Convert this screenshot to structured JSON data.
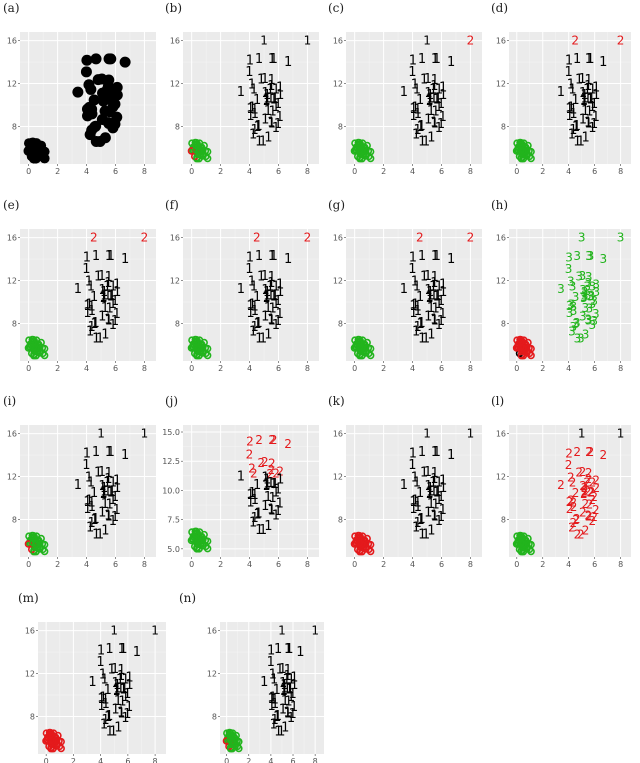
{
  "colors": {
    "panel_bg": "#ebebeb",
    "grid_major": "#ffffff",
    "cluster_1": "#000000",
    "cluster_2": "#e41a1c",
    "cluster_3": "#22b41d"
  },
  "chart_data": [
    {
      "label": "(a)",
      "type": "scatter",
      "marker": "dot",
      "small": "black",
      "large": "black",
      "xticks": [
        "0",
        "2",
        "4",
        "6",
        "8"
      ],
      "yticks": [
        "8",
        "12",
        "16"
      ],
      "xlim": [
        -0.6,
        8.8
      ],
      "ylim": [
        4.5,
        16.8
      ],
      "grid": true
    },
    {
      "label": "(b)",
      "type": "scatter",
      "marker": "label",
      "small": "mixed",
      "large": "1",
      "extra": [
        {
          "text": "1",
          "color": "black",
          "x": 5.0,
          "y": 16.0
        },
        {
          "text": "1",
          "color": "black",
          "x": 8.0,
          "y": 16.0
        }
      ],
      "xticks": [
        "0",
        "2",
        "4",
        "6",
        "8"
      ],
      "yticks": [
        "8",
        "12",
        "16"
      ],
      "xlim": [
        -0.6,
        8.8
      ],
      "ylim": [
        4.5,
        16.8
      ],
      "grid": true
    },
    {
      "label": "(c)",
      "type": "scatter",
      "marker": "label",
      "small": "green",
      "large": "1",
      "extra": [
        {
          "text": "1",
          "color": "black",
          "x": 5.0,
          "y": 16.0
        },
        {
          "text": "2",
          "color": "red",
          "x": 8.0,
          "y": 16.0
        }
      ],
      "xticks": [
        "0",
        "2",
        "4",
        "6",
        "8"
      ],
      "yticks": [
        "8",
        "12",
        "16"
      ],
      "xlim": [
        -0.6,
        8.8
      ],
      "ylim": [
        4.5,
        16.8
      ],
      "grid": true
    },
    {
      "label": "(d)",
      "type": "scatter",
      "marker": "label",
      "small": "green",
      "large": "1",
      "extra": [
        {
          "text": "2",
          "color": "red",
          "x": 4.5,
          "y": 16.0
        },
        {
          "text": "2",
          "color": "red",
          "x": 8.0,
          "y": 16.0
        }
      ],
      "xticks": [
        "0",
        "2",
        "4",
        "6",
        "8"
      ],
      "yticks": [
        "8",
        "12",
        "16"
      ],
      "xlim": [
        -0.6,
        8.8
      ],
      "ylim": [
        4.5,
        16.8
      ],
      "grid": true
    },
    {
      "label": "(e)",
      "type": "scatter",
      "marker": "label",
      "small": "green",
      "large": "1",
      "extra": [
        {
          "text": "2",
          "color": "red",
          "x": 4.5,
          "y": 16.0
        },
        {
          "text": "2",
          "color": "red",
          "x": 8.0,
          "y": 16.0
        }
      ],
      "xticks": [
        "0",
        "2",
        "4",
        "6",
        "8"
      ],
      "yticks": [
        "8",
        "12",
        "16"
      ],
      "xlim": [
        -0.6,
        8.8
      ],
      "ylim": [
        4.5,
        16.8
      ],
      "grid": true
    },
    {
      "label": "(f)",
      "type": "scatter",
      "marker": "label",
      "small": "green",
      "large": "1",
      "extra": [
        {
          "text": "2",
          "color": "red",
          "x": 4.5,
          "y": 16.0
        },
        {
          "text": "2",
          "color": "red",
          "x": 8.0,
          "y": 16.0
        }
      ],
      "xticks": [
        "0",
        "2",
        "4",
        "6",
        "8"
      ],
      "yticks": [
        "8",
        "12",
        "16"
      ],
      "xlim": [
        -0.6,
        8.8
      ],
      "ylim": [
        4.5,
        16.8
      ],
      "grid": true
    },
    {
      "label": "(g)",
      "type": "scatter",
      "marker": "label",
      "small": "green",
      "large": "1",
      "extra": [
        {
          "text": "2",
          "color": "red",
          "x": 4.5,
          "y": 16.0
        },
        {
          "text": "2",
          "color": "red",
          "x": 8.0,
          "y": 16.0
        }
      ],
      "xticks": [
        "0",
        "2",
        "4",
        "6",
        "8"
      ],
      "yticks": [
        "8",
        "12",
        "16"
      ],
      "xlim": [
        -0.6,
        8.8
      ],
      "ylim": [
        4.5,
        16.8
      ],
      "grid": true
    },
    {
      "label": "(h)",
      "type": "scatter",
      "marker": "label",
      "small": "redblack",
      "large": "3",
      "extra": [
        {
          "text": "3",
          "color": "green",
          "x": 5.0,
          "y": 16.0
        },
        {
          "text": "3",
          "color": "green",
          "x": 8.0,
          "y": 16.0
        }
      ],
      "xticks": [
        "0",
        "2",
        "4",
        "6",
        "8"
      ],
      "yticks": [
        "8",
        "12",
        "16"
      ],
      "xlim": [
        -0.6,
        8.8
      ],
      "ylim": [
        4.5,
        16.8
      ],
      "grid": true
    },
    {
      "label": "(i)",
      "type": "scatter",
      "marker": "label",
      "small": "mixed",
      "large": "1",
      "extra": [
        {
          "text": "1",
          "color": "black",
          "x": 5.0,
          "y": 16.0
        },
        {
          "text": "1",
          "color": "black",
          "x": 8.0,
          "y": 16.0
        }
      ],
      "xticks": [
        "0",
        "2",
        "4",
        "6",
        "8"
      ],
      "yticks": [
        "8",
        "12",
        "16"
      ],
      "xlim": [
        -0.6,
        8.8
      ],
      "ylim": [
        4.5,
        16.8
      ],
      "grid": true
    },
    {
      "label": "(j)",
      "type": "scatter",
      "marker": "label",
      "small": "green",
      "large": "mixed12",
      "extra": [],
      "xticks": [
        "0",
        "2",
        "4",
        "6",
        "8"
      ],
      "yticks": [
        "5.0",
        "7.5",
        "10.0",
        "12.5",
        "15.0"
      ],
      "xlim": [
        -0.6,
        8.8
      ],
      "ylim": [
        4.3,
        15.6
      ],
      "grid": true
    },
    {
      "label": "(k)",
      "type": "scatter",
      "marker": "label",
      "small": "red",
      "large": "1",
      "extra": [
        {
          "text": "1",
          "color": "black",
          "x": 5.0,
          "y": 16.0
        },
        {
          "text": "1",
          "color": "black",
          "x": 8.0,
          "y": 16.0
        }
      ],
      "xticks": [
        "0",
        "2",
        "4",
        "6",
        "8"
      ],
      "yticks": [
        "8",
        "12",
        "16"
      ],
      "xlim": [
        -0.6,
        8.8
      ],
      "ylim": [
        4.5,
        16.8
      ],
      "grid": true
    },
    {
      "label": "(l)",
      "type": "scatter",
      "marker": "label",
      "small": "green",
      "large": "2",
      "extra": [
        {
          "text": "1",
          "color": "black",
          "x": 5.0,
          "y": 16.0
        },
        {
          "text": "1",
          "color": "black",
          "x": 8.0,
          "y": 16.0
        }
      ],
      "xticks": [
        "0",
        "2",
        "4",
        "6",
        "8"
      ],
      "yticks": [
        "8",
        "12",
        "16"
      ],
      "xlim": [
        -0.6,
        8.8
      ],
      "ylim": [
        4.5,
        16.8
      ],
      "grid": true
    },
    {
      "label": "(m)",
      "type": "scatter",
      "marker": "label",
      "small": "red",
      "large": "1",
      "extra": [
        {
          "text": "1",
          "color": "black",
          "x": 5.0,
          "y": 16.0
        },
        {
          "text": "1",
          "color": "black",
          "x": 8.0,
          "y": 16.0
        }
      ],
      "xticks": [
        "0",
        "2",
        "4",
        "6",
        "8"
      ],
      "yticks": [
        "8",
        "12",
        "16"
      ],
      "xlim": [
        -0.6,
        8.8
      ],
      "ylim": [
        4.5,
        16.8
      ],
      "grid": true
    },
    {
      "label": "(n)",
      "type": "scatter",
      "marker": "label",
      "small": "mixed",
      "large": "1",
      "extra": [
        {
          "text": "1",
          "color": "black",
          "x": 5.0,
          "y": 16.0
        },
        {
          "text": "1",
          "color": "black",
          "x": 8.0,
          "y": 16.0
        }
      ],
      "xticks": [
        "0",
        "2",
        "4",
        "6",
        "8"
      ],
      "yticks": [
        "8",
        "12",
        "16"
      ],
      "xlim": [
        -0.6,
        8.8
      ],
      "ylim": [
        4.5,
        16.8
      ],
      "grid": true
    }
  ]
}
